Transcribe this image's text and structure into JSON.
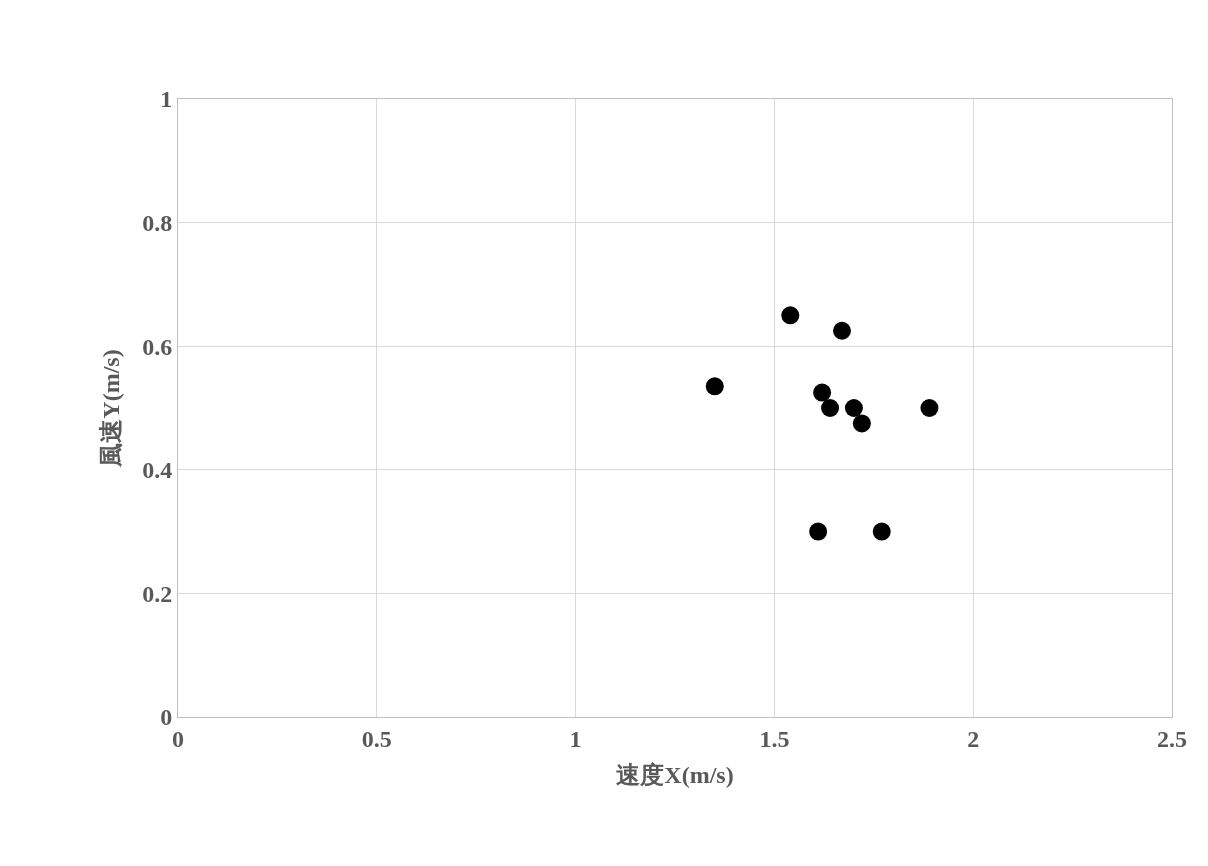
{
  "chart_data": {
    "type": "scatter",
    "xlabel": "速度X(m/s)",
    "ylabel": "風速Y(m/s)",
    "x": [
      1.35,
      1.54,
      1.67,
      1.62,
      1.64,
      1.7,
      1.72,
      1.89,
      1.61,
      1.77
    ],
    "values": [
      0.535,
      0.65,
      0.625,
      0.525,
      0.5,
      0.5,
      0.475,
      0.5,
      0.3,
      0.3
    ],
    "color": "#000000",
    "marker": "circle",
    "grid": true,
    "legend": false,
    "xlim": [
      0,
      2.5
    ],
    "xticks": [
      0,
      0.5,
      1,
      1.5,
      2,
      2.5
    ],
    "ylim": [
      0,
      1
    ],
    "yticks": [
      0,
      0.2,
      0.4,
      0.6,
      0.8,
      1
    ]
  }
}
